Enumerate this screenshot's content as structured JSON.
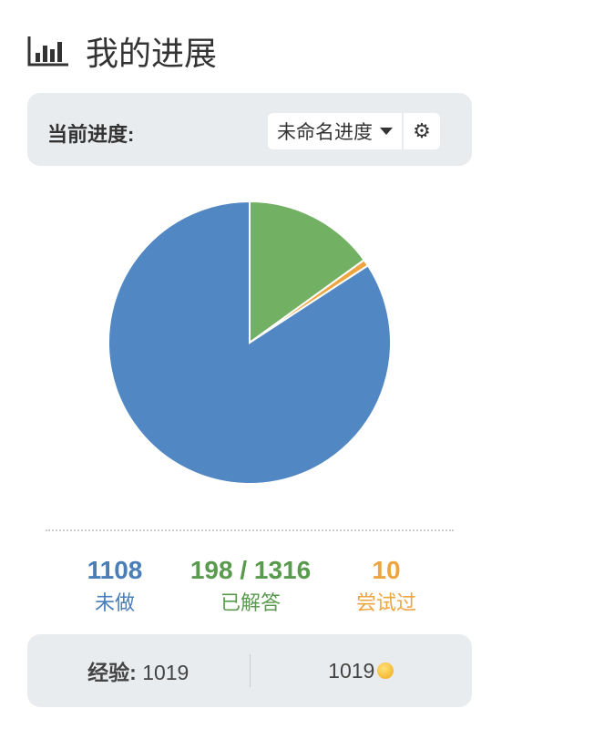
{
  "header": {
    "title": "我的进展",
    "icon": "bar-chart-icon"
  },
  "progress": {
    "label": "当前进度:",
    "selected": "未命名进度",
    "settings_icon": "gear-icon"
  },
  "chart_data": {
    "type": "pie",
    "slices": [
      {
        "name": "已解答",
        "value": 198,
        "color": "#72b164"
      },
      {
        "name": "尝试过",
        "value": 10,
        "color": "#eea540"
      },
      {
        "name": "未做",
        "value": 1108,
        "color": "#5187c2"
      }
    ]
  },
  "stats": {
    "todo": {
      "value": "1108",
      "label": "未做",
      "color": "#4a7eb8"
    },
    "solved": {
      "value": "198 / 1316",
      "label": "已解答",
      "color": "#5a9a4e"
    },
    "tried": {
      "value": "10",
      "label": "尝试过",
      "color": "#eea540"
    }
  },
  "footer": {
    "exp_label": "经验:",
    "exp_value": "1019",
    "coins": "1019",
    "coin_icon": "coin-icon"
  }
}
